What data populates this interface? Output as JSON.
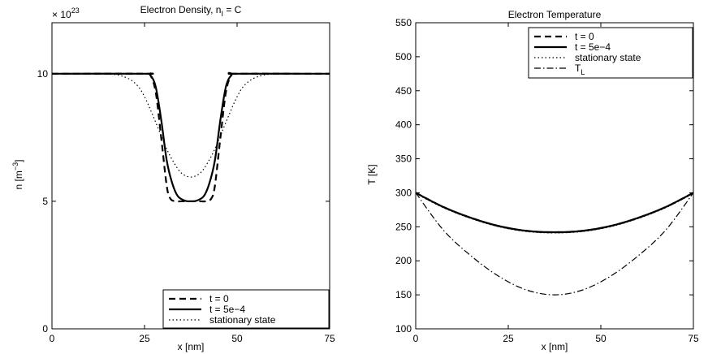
{
  "figure": {
    "charts_count": 2
  },
  "chart_data": [
    {
      "type": "line",
      "title": "Electron Density, n_I = C",
      "title_main": "Electron Density, n",
      "title_sub": "I",
      "title_tail": " = C",
      "xlabel": "x [nm]",
      "ylabel": "n [m^-3]",
      "ylabel_main": "n [m",
      "ylabel_sup": "−3",
      "ylabel_tail": "]",
      "xlim": [
        0,
        75
      ],
      "ylim": [
        0,
        12
      ],
      "y_exponent_text": "× 10",
      "y_exponent_power": "23",
      "x_ticks": [
        0,
        25,
        50,
        75
      ],
      "y_ticks": [
        0,
        5,
        10
      ],
      "legend": {
        "placement": "bottom-right",
        "entries": [
          "t = 0",
          "t = 5e−4",
          "stationary state"
        ]
      },
      "series": [
        {
          "name": "t = 0",
          "style": "dashed",
          "x": [
            0,
            25.5,
            26.5,
            28,
            29.5,
            31,
            32,
            33.5,
            35,
            37.5,
            40,
            41.5,
            43,
            44,
            45.5,
            47,
            48.5,
            49.5,
            75
          ],
          "y": [
            10,
            10,
            9.97,
            9.3,
            7.5,
            5.6,
            5.1,
            5.0,
            5.0,
            5.0,
            5.0,
            5.0,
            5.1,
            5.6,
            7.5,
            9.3,
            9.97,
            10,
            10
          ]
        },
        {
          "name": "t = 5e−4",
          "style": "solid",
          "x": [
            0,
            25,
            26.5,
            28,
            29.5,
            31,
            32.5,
            34,
            36,
            37.5,
            39,
            41,
            42.5,
            44,
            45.5,
            47,
            48.5,
            50,
            75
          ],
          "y": [
            10,
            10,
            9.95,
            9.5,
            8.2,
            6.6,
            5.7,
            5.2,
            5.02,
            5.0,
            5.02,
            5.2,
            5.7,
            6.6,
            8.2,
            9.5,
            9.95,
            10,
            10
          ]
        },
        {
          "name": "stationary state",
          "style": "dotted",
          "x": [
            0,
            15,
            20,
            23,
            25,
            27,
            29,
            31,
            33,
            35,
            37.5,
            40,
            42,
            44,
            46,
            48,
            50,
            52,
            55,
            60,
            75
          ],
          "y": [
            10,
            9.99,
            9.85,
            9.55,
            9.1,
            8.45,
            7.75,
            7.05,
            6.5,
            6.1,
            5.95,
            6.1,
            6.5,
            7.05,
            7.75,
            8.45,
            9.1,
            9.55,
            9.85,
            9.99,
            10
          ]
        }
      ]
    },
    {
      "type": "line",
      "title": "Electron Temperature",
      "xlabel": "x [nm]",
      "ylabel": "T [K]",
      "xlim": [
        0,
        75
      ],
      "ylim": [
        100,
        550
      ],
      "x_ticks": [
        0,
        25,
        50,
        75
      ],
      "y_ticks": [
        100,
        150,
        200,
        250,
        300,
        350,
        400,
        450,
        500,
        550
      ],
      "legend": {
        "placement": "top-right",
        "entries": [
          "t = 0",
          "t = 5e−4",
          "stationary state",
          "T_L"
        ],
        "last_main": "T",
        "last_sub": "L"
      },
      "series": [
        {
          "name": "t = 0",
          "style": "dashed",
          "x": [
            0,
            7.5,
            15,
            22.5,
            30,
            37.5,
            45,
            52.5,
            60,
            67.5,
            75
          ],
          "y": [
            300,
            279,
            263,
            251,
            244,
            242,
            244,
            251,
            263,
            279,
            300
          ]
        },
        {
          "name": "t = 5e−4",
          "style": "solid",
          "x": [
            0,
            7.5,
            15,
            22.5,
            30,
            37.5,
            45,
            52.5,
            60,
            67.5,
            75
          ],
          "y": [
            300,
            279,
            263,
            251,
            244,
            242,
            244,
            251,
            263,
            279,
            300
          ]
        },
        {
          "name": "stationary state",
          "style": "dotted",
          "x": [
            0,
            7.5,
            15,
            22.5,
            30,
            37.5,
            45,
            52.5,
            60,
            67.5,
            75
          ],
          "y": [
            299,
            278,
            262,
            250,
            243,
            241,
            243,
            250,
            262,
            278,
            299
          ]
        },
        {
          "name": "T_L",
          "style": "dashdot",
          "x": [
            0,
            7.5,
            15,
            22.5,
            30,
            37.5,
            45,
            52.5,
            60,
            67.5,
            75
          ],
          "y": [
            300,
            245,
            207,
            177,
            157,
            150,
            157,
            177,
            207,
            245,
            300
          ]
        }
      ]
    }
  ]
}
